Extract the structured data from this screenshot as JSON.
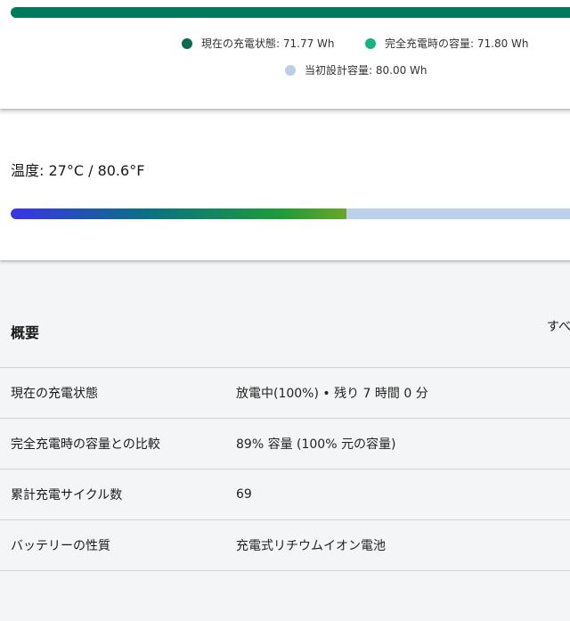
{
  "capacity": {
    "legend": [
      {
        "label": "現在の充電状態: 71.77 Wh",
        "color": "#0b6b52"
      },
      {
        "label": "完全充電時の容量: 71.80 Wh",
        "color": "#17b384"
      },
      {
        "label": "当初設計容量: 80.00 Wh",
        "color": "#bccee6"
      }
    ]
  },
  "temperature": {
    "label": "温度:  27°C / 80.6°F",
    "bar_percent": 58
  },
  "overview": {
    "title": "概要",
    "see_all": "すべ",
    "rows": [
      {
        "key": "現在の充電状態",
        "value": "放電中(100%) • 残り 7 時間 0 分"
      },
      {
        "key": "完全充電時の容量との比較",
        "value": "89% 容量 (100% 元の容量)"
      },
      {
        "key": "累計充電サイクル数",
        "value": "69"
      },
      {
        "key": "バッテリーの性質",
        "value": "充電式リチウムイオン電池"
      }
    ]
  }
}
